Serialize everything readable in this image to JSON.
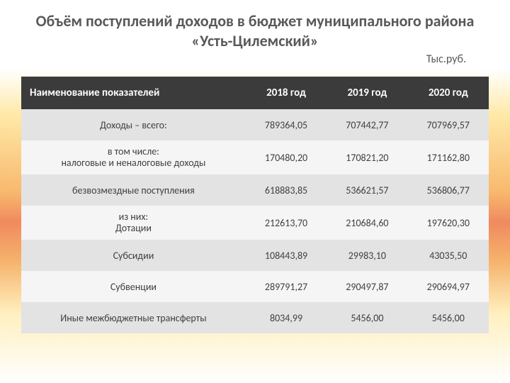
{
  "title": "Объём поступлений доходов в бюджет муниципального района «Усть-Цилемский»",
  "unit_label": "Тыс.руб.",
  "table": {
    "type": "table",
    "columns": [
      "Наименование показателей",
      "2018 год",
      "2019 год",
      "2020 год"
    ],
    "column_widths_pct": [
      48,
      17.33,
      17.33,
      17.33
    ],
    "header_bg": "#3b3b3b",
    "header_color": "#ffffff",
    "row_alt_bg": "#e3e3e3",
    "row_plain_bg": "#f5f5f5",
    "text_color": "#404040",
    "header_fontsize": 15,
    "cell_fontsize": 14,
    "rows": [
      {
        "name": "Доходы – всего:",
        "y2018": "789364,05",
        "y2019": "707442,77",
        "y2020": "707969,57",
        "alt": true
      },
      {
        "name": "в том числе:\nналоговые и неналоговые доходы",
        "y2018": "170480,20",
        "y2019": "170821,20",
        "y2020": "171162,80",
        "alt": false
      },
      {
        "name": "безвозмездные поступления",
        "y2018": "618883,85",
        "y2019": "536621,57",
        "y2020": "536806,77",
        "alt": true
      },
      {
        "name": "из них:\nДотации",
        "y2018": "212613,70",
        "y2019": "210684,60",
        "y2020": "197620,30",
        "alt": false
      },
      {
        "name": "Субсидии",
        "y2018": "108443,89",
        "y2019": "29983,10",
        "y2020": "43035,50",
        "alt": true
      },
      {
        "name": "Субвенции",
        "y2018": "289791,27",
        "y2019": "290497,87",
        "y2020": "290694,97",
        "alt": false
      },
      {
        "name": "Иные межбюджетные трансферты",
        "y2018": "8034,99",
        "y2019": "5456,00",
        "y2020": "5456,00",
        "alt": true
      }
    ]
  },
  "title_color": "#595959",
  "title_fontsize": 22,
  "background_gradient": [
    "#ffffff",
    "#ffe9a8",
    "#f8b96e",
    "#f08a5f",
    "#f6b26b",
    "#fff0c0",
    "#ffffff"
  ]
}
